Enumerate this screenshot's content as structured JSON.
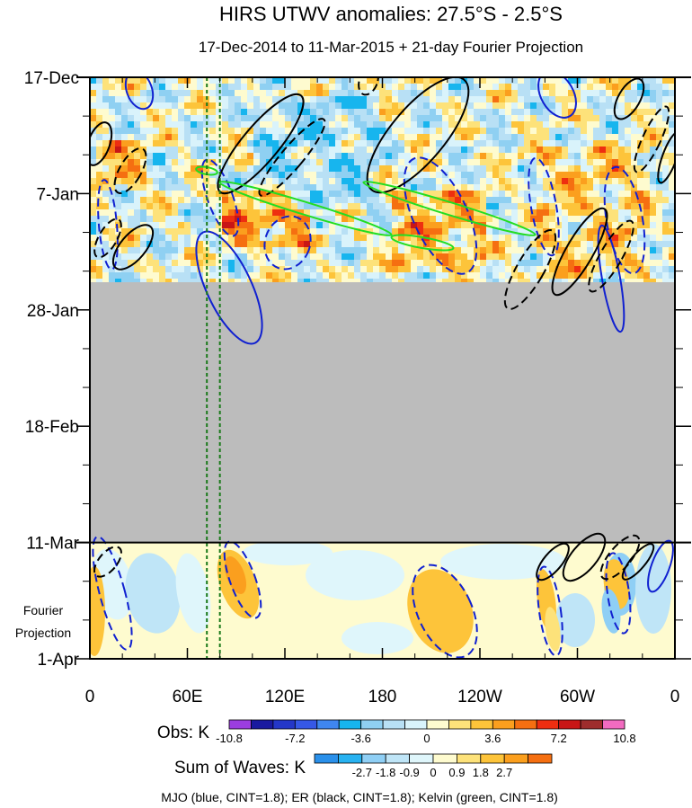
{
  "chart_data": {
    "type": "heatmap",
    "title": "HIRS UTWV anomalies: 27.5°S - 2.5°S",
    "subtitle": "17-Dec-2014 to 11-Mar-2015 + 21-day Fourier Projection",
    "x_ticks": [
      {
        "lon": 0,
        "label": "0"
      },
      {
        "lon": 60,
        "label": "60E"
      },
      {
        "lon": 120,
        "label": "120E"
      },
      {
        "lon": 180,
        "label": "180"
      },
      {
        "lon": 240,
        "label": "120W"
      },
      {
        "lon": 300,
        "label": "60W"
      },
      {
        "lon": 360,
        "label": "0"
      }
    ],
    "xlim": [
      0,
      360
    ],
    "time_ticks": [
      {
        "day": 0,
        "label": "17-Dec"
      },
      {
        "day": 21,
        "label": "7-Jan"
      },
      {
        "day": 42,
        "label": "28-Jan"
      },
      {
        "day": 63,
        "label": "18-Feb"
      },
      {
        "day": 84,
        "label": "11-Mar"
      },
      {
        "day": 105,
        "label": "1-Apr"
      }
    ],
    "observed_data_end_day": 37,
    "missing_data_days": [
      37,
      84
    ],
    "projection_start_day": 84,
    "projection_label_lines": [
      "Fourier",
      "Projection"
    ],
    "reference_longitudes": [
      72,
      80
    ],
    "obs_colorbar": {
      "label": "Obs: K",
      "tick_labels": [
        "-10.8",
        "-7.2",
        "-3.6",
        "0",
        "3.6",
        "7.2",
        "10.8"
      ],
      "colors": [
        "#9b3de0",
        "#1a1aa0",
        "#2437c8",
        "#3658e6",
        "#3f86f0",
        "#17b5ee",
        "#8fd0f2",
        "#b8e0f5",
        "#d9f3fb",
        "#fefbcf",
        "#fde27a",
        "#fdc43a",
        "#fb9f1e",
        "#f56f11",
        "#ee2e10",
        "#c81616",
        "#9e2d2d",
        "#f26bc0"
      ]
    },
    "waves_colorbar": {
      "label": "Sum of Waves: K",
      "tick_labels": [
        "-2.7",
        "-1.8",
        "-0.9",
        "0",
        "0.9",
        "1.8",
        "2.7"
      ],
      "colors": [
        "#2a90ea",
        "#28b2f1",
        "#8fcff5",
        "#bfe5f7",
        "#dff6fb",
        "#fefbcf",
        "#fde27a",
        "#fdc43a",
        "#fb9f1e",
        "#f56f11"
      ]
    },
    "waves": [
      {
        "name": "MJO",
        "color": "#1020d0",
        "cint": 1.8
      },
      {
        "name": "ER",
        "color": "#000000",
        "cint": 1.8
      },
      {
        "name": "Kelvin",
        "color": "#22dd22",
        "cint": 1.8
      }
    ],
    "footer": "MJO (blue, CINT=1.8); ER (black, CINT=1.8); Kelvin (green, CINT=1.8)"
  }
}
